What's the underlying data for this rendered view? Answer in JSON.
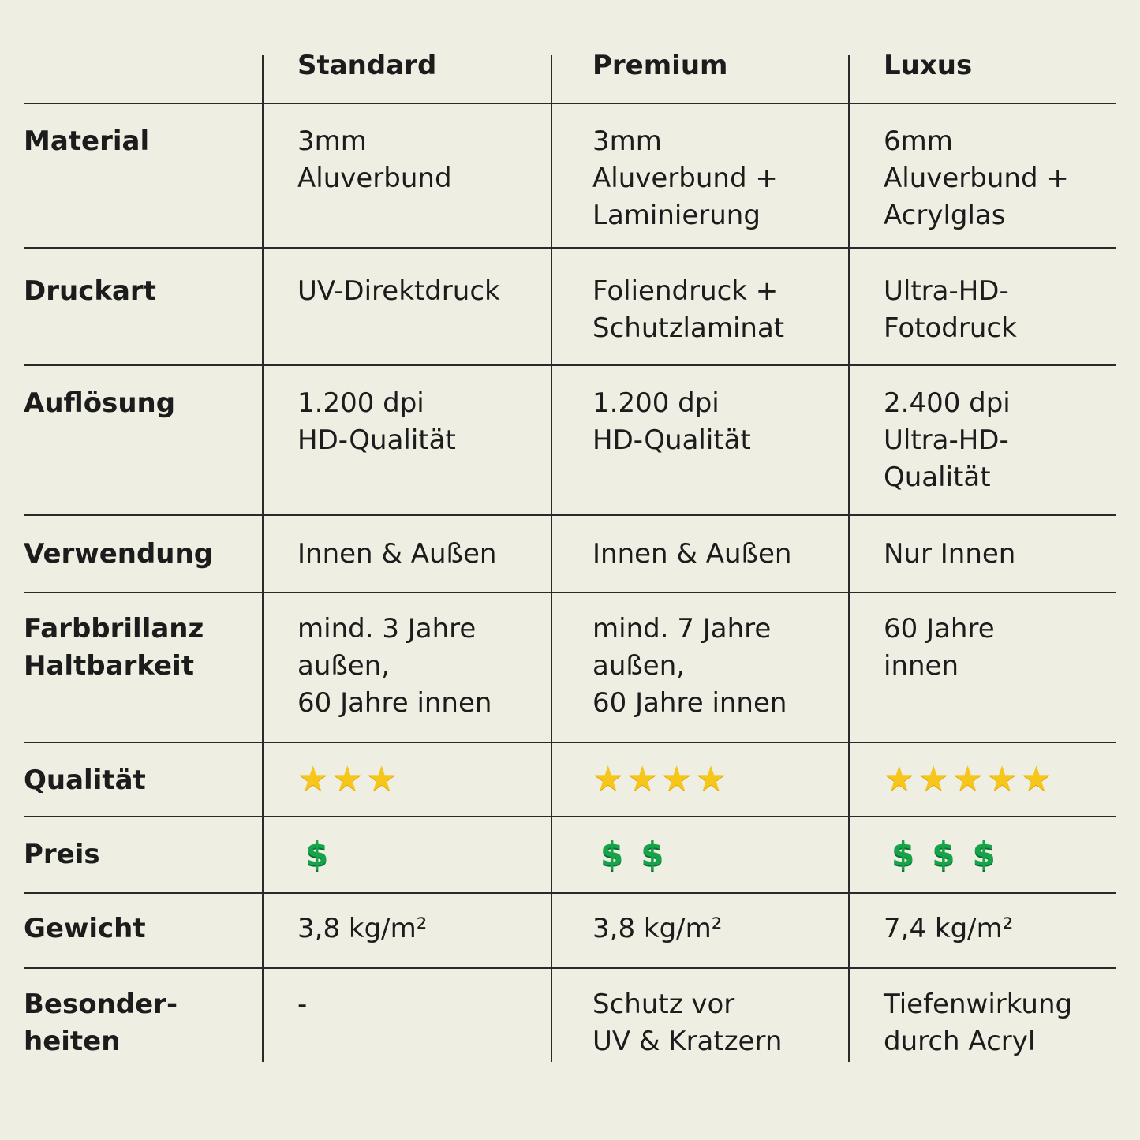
{
  "columns": [
    "Standard",
    "Premium",
    "Luxus"
  ],
  "rows": [
    {
      "label": "Material",
      "values": [
        "3mm\nAluverbund",
        "3mm\nAluverbund +\nLaminierung",
        "6mm\nAluverbund +\nAcrylglas"
      ]
    },
    {
      "label": "Druckart",
      "values": [
        "UV-Direktdruck",
        "Foliendruck +\nSchutzlaminat",
        "Ultra-HD-\nFotodruck"
      ]
    },
    {
      "label": "Auflösung",
      "values": [
        "1.200 dpi\nHD-Qualität",
        "1.200 dpi\nHD-Qualität",
        "2.400 dpi\nUltra-HD-\nQualität"
      ]
    },
    {
      "label": "Verwendung",
      "values": [
        "Innen & Außen",
        "Innen & Außen",
        "Nur Innen"
      ]
    },
    {
      "label": "Farbbrillanz\nHaltbarkeit",
      "values": [
        "mind. 3 Jahre\naußen,\n60 Jahre innen",
        "mind. 7 Jahre\naußen,\n60 Jahre innen",
        "60 Jahre\ninnen"
      ]
    },
    {
      "label": "Qualität",
      "stars": [
        3,
        4,
        5
      ]
    },
    {
      "label": "Preis",
      "price": [
        1,
        2,
        3
      ]
    },
    {
      "label": "Gewicht",
      "values": [
        "3,8 kg/m²",
        "3,8 kg/m²",
        "7,4 kg/m²"
      ]
    },
    {
      "label": "Besonder-\nheiten",
      "values": [
        "-",
        "Schutz vor\nUV & Kratzern",
        "Tiefenwirkung\ndurch Acryl"
      ]
    }
  ],
  "colors": {
    "star": "#f7c61a",
    "dollar": "#16a34a",
    "background": "#efeee2"
  },
  "icons": {
    "rating": "star-icon",
    "price": "dollar-icon"
  }
}
